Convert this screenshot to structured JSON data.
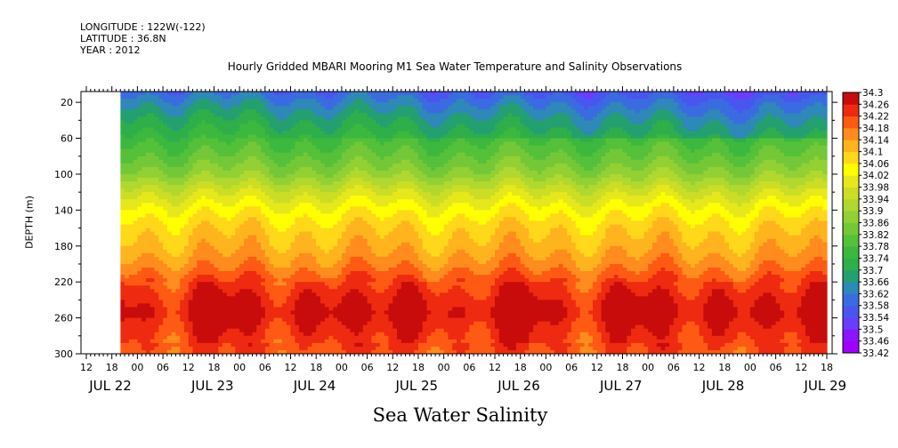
{
  "header": {
    "longitude": "LONGITUDE : 122W(-122)",
    "latitude": "LATITUDE : 36.8N",
    "year": "YEAR : 2012"
  },
  "chart_data": {
    "type": "heatmap",
    "title": "Hourly Gridded MBARI Mooring M1 Sea Water Temperature and Salinity Observations",
    "xlabel": "",
    "ylabel": "DEPTH (m)",
    "bottom_title": "Sea Water Salinity",
    "y_ticks": [
      20,
      60,
      100,
      140,
      180,
      220,
      260,
      300
    ],
    "ylim": [
      300,
      8
    ],
    "x_range_hours": [
      0,
      174
    ],
    "x_ticks_hours": [
      0,
      6,
      12,
      18,
      24,
      30,
      36,
      42,
      48,
      54,
      60,
      66,
      72,
      78,
      84,
      90,
      96,
      102,
      108,
      114,
      120,
      126,
      132,
      138,
      144,
      150,
      156,
      162,
      168,
      174
    ],
    "x_tick_labels": [
      "12",
      "18",
      "00",
      "06",
      "12",
      "18",
      "00",
      "06",
      "12",
      "18",
      "00",
      "06",
      "12",
      "18",
      "00",
      "06",
      "12",
      "18",
      "00",
      "06",
      "12",
      "18",
      "00",
      "06",
      "12",
      "18",
      "00",
      "06",
      "12",
      "18"
    ],
    "date_labels": [
      {
        "label": "JUL 22",
        "hour": 0
      },
      {
        "label": "JUL 23",
        "hour": 24
      },
      {
        "label": "JUL 24",
        "hour": 48
      },
      {
        "label": "JUL 25",
        "hour": 72
      },
      {
        "label": "JUL 26",
        "hour": 96
      },
      {
        "label": "JUL 27",
        "hour": 120
      },
      {
        "label": "JUL 28",
        "hour": 144
      },
      {
        "label": "JUL 29",
        "hour": 168
      }
    ],
    "missing_data_before_hour": 8,
    "colorbar_levels": [
      33.42,
      33.46,
      33.5,
      33.54,
      33.58,
      33.62,
      33.66,
      33.7,
      33.74,
      33.78,
      33.82,
      33.86,
      33.9,
      33.94,
      33.98,
      34.02,
      34.06,
      34.1,
      34.14,
      34.18,
      34.22,
      34.26,
      34.3
    ],
    "colorbar_labels": [
      "34.3",
      "34.26",
      "34.22",
      "34.18",
      "34.14",
      "34.1",
      "34.06",
      "34.02",
      "33.98",
      "33.94",
      "33.9",
      "33.86",
      "33.82",
      "33.78",
      "33.74",
      "33.7",
      "33.66",
      "33.62",
      "33.58",
      "33.54",
      "33.5",
      "33.46",
      "33.42"
    ],
    "depth_profile": [
      {
        "depth": 10,
        "salinity": 33.62
      },
      {
        "depth": 20,
        "salinity": 33.66
      },
      {
        "depth": 40,
        "salinity": 33.72
      },
      {
        "depth": 60,
        "salinity": 33.77
      },
      {
        "depth": 80,
        "salinity": 33.82
      },
      {
        "depth": 100,
        "salinity": 33.88
      },
      {
        "depth": 120,
        "salinity": 33.97
      },
      {
        "depth": 140,
        "salinity": 34.04
      },
      {
        "depth": 160,
        "salinity": 34.09
      },
      {
        "depth": 180,
        "salinity": 34.12
      },
      {
        "depth": 200,
        "salinity": 34.16
      },
      {
        "depth": 220,
        "salinity": 34.22
      },
      {
        "depth": 240,
        "salinity": 34.26
      },
      {
        "depth": 255,
        "salinity": 34.28
      },
      {
        "depth": 270,
        "salinity": 34.25
      },
      {
        "depth": 300,
        "salinity": 34.21
      }
    ]
  }
}
